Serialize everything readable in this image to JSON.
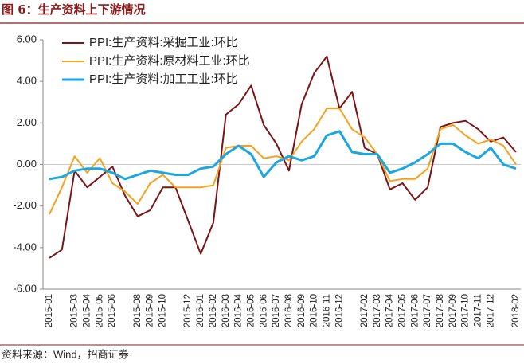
{
  "chart_data": {
    "type": "line",
    "title": "图 6：生产资料上下游情况",
    "source": "资料来源：Wind，招商证券",
    "categories": [
      "2015-01",
      null,
      "2015-03",
      "2015-04",
      "2015-05",
      "2015-06",
      null,
      "2015-08",
      "2015-09",
      "2015-10",
      null,
      "2015-12",
      "2016-01",
      "2016-02",
      "2016-03",
      "2016-04",
      "2016-05",
      "2016-06",
      "2016-07",
      "2016-08",
      "2016-09",
      "2016-10",
      "2016-11",
      "2016-12",
      null,
      "2017-02",
      "2017-03",
      "2017-04",
      "2017-05",
      "2017-06",
      "2017-07",
      "2017-08",
      "2017-09",
      "2017-10",
      "2017-11",
      "2017-12",
      null,
      "2018-02"
    ],
    "series": [
      {
        "name": "PPI:生产资料:采掘工业:环比",
        "color": "#7b1416",
        "width": 2,
        "values": [
          -4.5,
          -4.1,
          -0.3,
          -1.1,
          -0.6,
          -0.1,
          -1.5,
          -2.5,
          -2.2,
          -1.1,
          -1.1,
          -2.7,
          -4.3,
          -2.8,
          2.4,
          2.9,
          3.8,
          1.9,
          1.0,
          -0.3,
          2.9,
          4.4,
          5.2,
          2.7,
          3.5,
          0.8,
          0.5,
          -1.2,
          -0.9,
          -1.7,
          -1.1,
          1.8,
          2.0,
          2.1,
          1.7,
          1.1,
          1.3,
          0.6
        ]
      },
      {
        "name": "PPI:生产资料:原材料工业:环比",
        "color": "#f4a21d",
        "width": 2,
        "values": [
          -2.4,
          -1.1,
          0.4,
          -0.4,
          0.3,
          -0.9,
          -1.3,
          -1.9,
          -0.9,
          -0.5,
          -1.1,
          -1.1,
          -1.1,
          -1.0,
          0.8,
          0.9,
          0.9,
          0.3,
          0.4,
          0.2,
          1.1,
          1.7,
          2.7,
          2.7,
          1.7,
          1.3,
          0.5,
          -0.8,
          -0.7,
          -0.7,
          -0.2,
          1.7,
          1.9,
          1.4,
          1.0,
          1.2,
          0.9,
          0.0
        ]
      },
      {
        "name": "PPI:生产资料:加工工业:环比",
        "color": "#1aa6e0",
        "width": 3,
        "values": [
          -0.7,
          -0.6,
          -0.3,
          -0.2,
          -0.2,
          -0.4,
          -0.7,
          -0.5,
          -0.3,
          -0.4,
          -0.5,
          -0.5,
          -0.2,
          -0.1,
          0.5,
          0.9,
          0.5,
          -0.6,
          0.1,
          0.4,
          0.2,
          0.4,
          1.4,
          1.6,
          0.6,
          0.5,
          0.5,
          -0.4,
          -0.2,
          0.1,
          0.5,
          1.0,
          1.0,
          0.6,
          0.3,
          0.8,
          0.0,
          -0.2
        ]
      }
    ],
    "ylim": [
      -6,
      6
    ],
    "yticks": [
      {
        "value": -6,
        "label": "-6.00"
      },
      {
        "value": -4,
        "label": "-4.00"
      },
      {
        "value": -2,
        "label": "-2.00"
      },
      {
        "value": 0,
        "label": "0.00"
      },
      {
        "value": 2,
        "label": "2.00"
      },
      {
        "value": 4,
        "label": "4.00"
      },
      {
        "value": 6,
        "label": "6.00"
      }
    ],
    "grid": false,
    "legend": "upper-left"
  }
}
